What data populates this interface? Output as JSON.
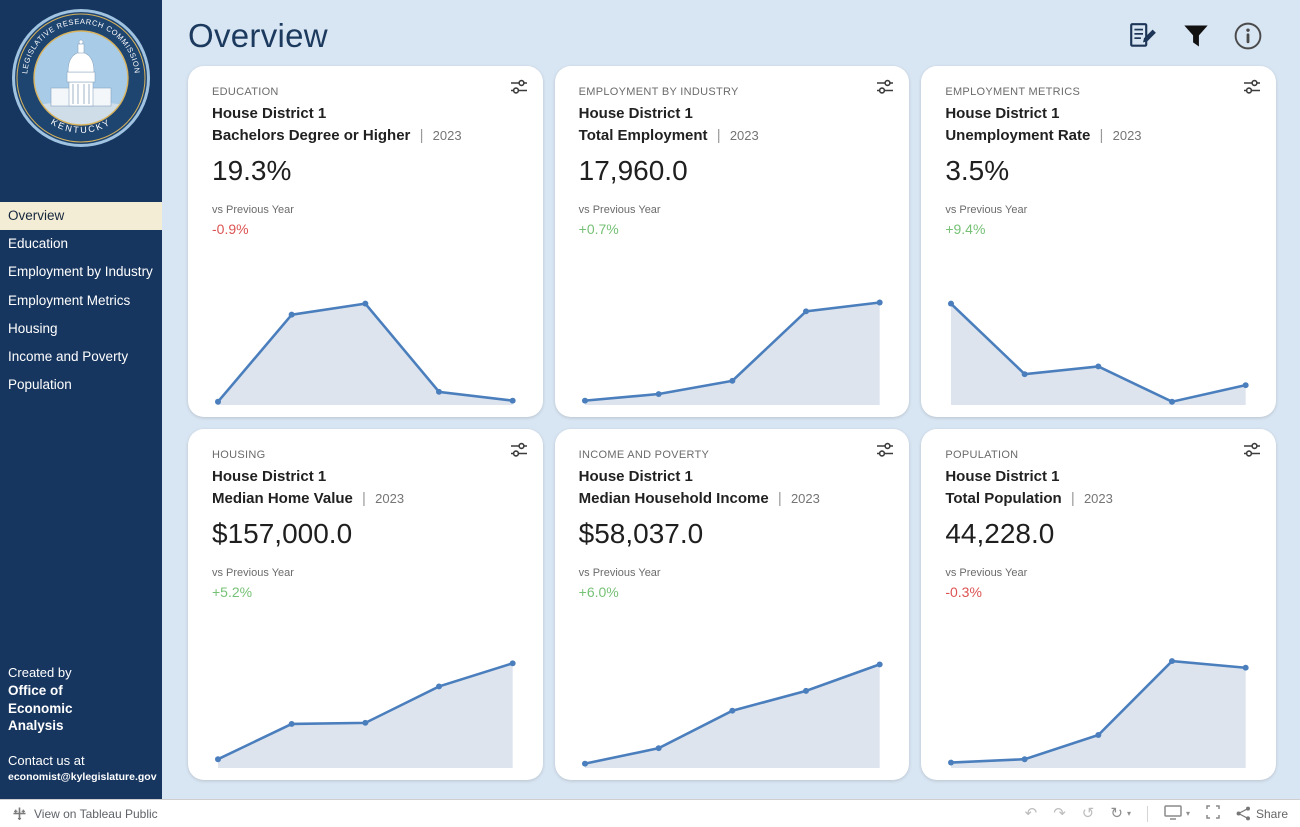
{
  "page": {
    "title": "Overview",
    "metric_separator": "|",
    "vs_previous_label": "vs Previous Year"
  },
  "sidebar": {
    "logo": {
      "text_top": "LEGISLATIVE RESEARCH COMMISSION",
      "text_bottom": "KENTUCKY"
    },
    "items": [
      {
        "label": "Overview",
        "active": true
      },
      {
        "label": "Education",
        "active": false
      },
      {
        "label": "Employment by Industry",
        "active": false
      },
      {
        "label": "Employment Metrics",
        "active": false
      },
      {
        "label": "Housing",
        "active": false
      },
      {
        "label": "Income and Poverty",
        "active": false
      },
      {
        "label": "Population",
        "active": false
      }
    ],
    "footer": {
      "created_by": "Created by",
      "org": "Office of Economic Analysis",
      "contact_label": "Contact us at",
      "contact_email": "economist@kylegislature.gov"
    }
  },
  "cards": [
    {
      "category": "EDUCATION",
      "district": "House District 1",
      "metric": "Bachelors Degree or Higher",
      "year": "2023",
      "value": "19.3%",
      "change": "-0.9%",
      "change_direction": "negative"
    },
    {
      "category": "EMPLOYMENT BY INDUSTRY",
      "district": "House District 1",
      "metric": "Total Employment",
      "year": "2023",
      "value": "17,960.0",
      "change": "+0.7%",
      "change_direction": "positive"
    },
    {
      "category": "EMPLOYMENT METRICS",
      "district": "House District 1",
      "metric": "Unemployment Rate",
      "year": "2023",
      "value": "3.5%",
      "change": "+9.4%",
      "change_direction": "positive"
    },
    {
      "category": "HOUSING",
      "district": "House District 1",
      "metric": "Median Home Value",
      "year": "2023",
      "value": "$157,000.0",
      "change": "+5.2%",
      "change_direction": "positive"
    },
    {
      "category": "INCOME AND POVERTY",
      "district": "House District 1",
      "metric": "Median Household Income",
      "year": "2023",
      "value": "$58,037.0",
      "change": "+6.0%",
      "change_direction": "positive"
    },
    {
      "category": "POPULATION",
      "district": "House District 1",
      "metric": "Total Population",
      "year": "2023",
      "value": "44,228.0",
      "change": "-0.3%",
      "change_direction": "negative"
    }
  ],
  "chart_data": [
    {
      "card": "Education",
      "type": "area",
      "metric": "Bachelors Degree or Higher",
      "values": [
        3,
        82,
        92,
        12,
        4
      ],
      "values_scale": "relative 0-100, no axes shown"
    },
    {
      "card": "Employment by Industry",
      "type": "area",
      "metric": "Total Employment",
      "values": [
        4,
        10,
        22,
        85,
        93
      ],
      "values_scale": "relative 0-100, no axes shown"
    },
    {
      "card": "Employment Metrics",
      "type": "area",
      "metric": "Unemployment Rate",
      "values": [
        92,
        28,
        35,
        3,
        18
      ],
      "values_scale": "relative 0-100, no axes shown"
    },
    {
      "card": "Housing",
      "type": "area",
      "metric": "Median Home Value",
      "values": [
        8,
        40,
        41,
        74,
        95
      ],
      "values_scale": "relative 0-100, no axes shown"
    },
    {
      "card": "Income and Poverty",
      "type": "area",
      "metric": "Median Household Income",
      "values": [
        4,
        18,
        52,
        70,
        94
      ],
      "values_scale": "relative 0-100, no axes shown"
    },
    {
      "card": "Population",
      "type": "area",
      "metric": "Total Population",
      "values": [
        5,
        8,
        30,
        97,
        91
      ],
      "values_scale": "relative 0-100, no axes shown"
    }
  ],
  "footer_bar": {
    "view_text": "View on Tableau Public",
    "icons": {
      "undo": "↶",
      "redo": "↷",
      "replay": "↺",
      "refresh": "↻",
      "caret": "▾"
    },
    "share_label": "Share"
  },
  "colors": {
    "chart_line": "#4a7ebc",
    "chart_fill": "#dde4ee",
    "positive": "#76c176",
    "negative": "#dd5353",
    "sidebar_bg": "#17365f",
    "active_item_bg": "#f3edd6",
    "page_bg": "#d8e5f2"
  }
}
